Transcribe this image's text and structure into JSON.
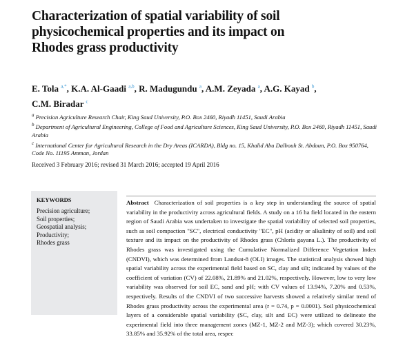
{
  "title": "Characterization of spatial variability of soil physicochemical properties and its impact on Rhodes grass productivity",
  "authors": [
    {
      "name": "E. Tola",
      "sup": "a,*"
    },
    {
      "name": "K.A. Al-Gaadi",
      "sup": "a,b"
    },
    {
      "name": "R. Madugundu",
      "sup": "a"
    },
    {
      "name": "A.M. Zeyada",
      "sup": "a"
    },
    {
      "name": "A.G. Kayad",
      "sup": "b"
    },
    {
      "name": "C.M. Biradar",
      "sup": "c"
    }
  ],
  "affiliations": [
    {
      "sup": "a",
      "text": "Precision Agriculture Research Chair, King Saud University, P.O. Box 2460, Riyadh 11451, Saudi Arabia"
    },
    {
      "sup": "b",
      "text": "Department of Agricultural Engineering, College of Food and Agriculture Sciences, King Saud University, P.O. Box 2460, Riyadh 11451, Saudi Arabia"
    },
    {
      "sup": "c",
      "text": "International Center for Agricultural Research in the Dry Areas (ICARDA), Bldg no. 15, Khalid Abu Dalbouh St. Abdoun, P.O. Box 950764, Code No. 11195 Amman, Jordan"
    }
  ],
  "received": "Received 3 February 2016; revised 31 March 2016; accepted 19 April 2016",
  "keywords": {
    "heading": "KEYWORDS",
    "items": [
      "Precision agriculture;",
      "Soil properties;",
      "Geospatial analysis;",
      "Productivity;",
      "Rhodes grass"
    ]
  },
  "abstract": {
    "label": "Abstract",
    "text": "Characterization of soil properties is a key step in understanding the source of spatial variability in the productivity across agricultural fields. A study on a 16 ha field located in the eastern region of Saudi Arabia was undertaken to investigate the spatial variability of selected soil properties, such as soil compaction \"SC\", electrical conductivity \"EC\", pH (acidity or alkalinity of soil) and soil texture and its impact on the productivity of Rhodes grass (Chloris gayana L.). The productivity of Rhodes grass was investigated using the Cumulative Normalized Difference Vegetation Index (CNDVI), which was determined from Landsat-8 (OLI) images. The statistical analysis showed high spatial variability across the experimental field based on SC, clay and silt; indicated by values of the coefficient of variation (CV) of 22.08%, 21.89% and 21.02%, respectively. However, low to very low variability was observed for soil EC, sand and pH; with CV values of 13.94%, 7.20% and 0.53%, respectively. Results of the CNDVI of two successive harvests showed a relatively similar trend of Rhodes grass productivity across the experimental area (r = 0.74, p = 0.0001). Soil physicochemical layers of a considerable spatial variability (SC, clay, silt and EC) were utilized to delineate the experimental field into three management zones (MZ-1, MZ-2 and MZ-3); which covered 30.23%, 33.85% and 35.92% of the total area, respec"
  }
}
